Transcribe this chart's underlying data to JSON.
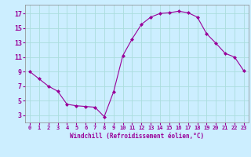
{
  "x": [
    0,
    1,
    2,
    3,
    4,
    5,
    6,
    7,
    8,
    9,
    10,
    11,
    12,
    13,
    14,
    15,
    16,
    17,
    18,
    19,
    20,
    21,
    22,
    23
  ],
  "y": [
    9,
    8,
    7,
    6.3,
    4.5,
    4.3,
    4.2,
    4.1,
    2.8,
    6.2,
    11.2,
    13.5,
    15.5,
    16.5,
    17.0,
    17.1,
    17.3,
    17.1,
    16.5,
    14.2,
    12.9,
    11.5,
    11.0,
    9.1
  ],
  "line_color": "#990099",
  "marker": "D",
  "marker_size": 2.0,
  "bg_color": "#cceeff",
  "grid_color": "#aadddd",
  "tick_color": "#990099",
  "label_color": "#990099",
  "xlabel": "Windchill (Refroidissement éolien,°C)",
  "yticks": [
    3,
    5,
    7,
    9,
    11,
    13,
    15,
    17
  ],
  "xtick_labels": [
    "0",
    "1",
    "2",
    "3",
    "4",
    "5",
    "6",
    "7",
    "8",
    "9",
    "10",
    "11",
    "12",
    "13",
    "14",
    "15",
    "16",
    "17",
    "18",
    "19",
    "20",
    "21",
    "22",
    "23"
  ],
  "ylim": [
    2.0,
    18.2
  ],
  "xlim": [
    -0.5,
    23.5
  ],
  "spine_color": "#888888",
  "xlabel_fontsize": 5.5,
  "xtick_fontsize": 5.0,
  "ytick_fontsize": 6.0
}
